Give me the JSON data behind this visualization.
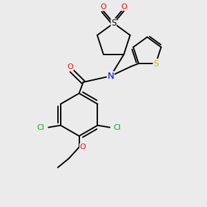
{
  "bg_color": "#ebebeb",
  "bond_color": "#000000",
  "atom_colors": {
    "S_sulfonyl": "#000000",
    "S_thiophene": "#ccbb00",
    "N": "#0000ee",
    "O": "#ff0000",
    "Cl": "#00aa00"
  },
  "lw": 1.4,
  "fs": 7.5
}
